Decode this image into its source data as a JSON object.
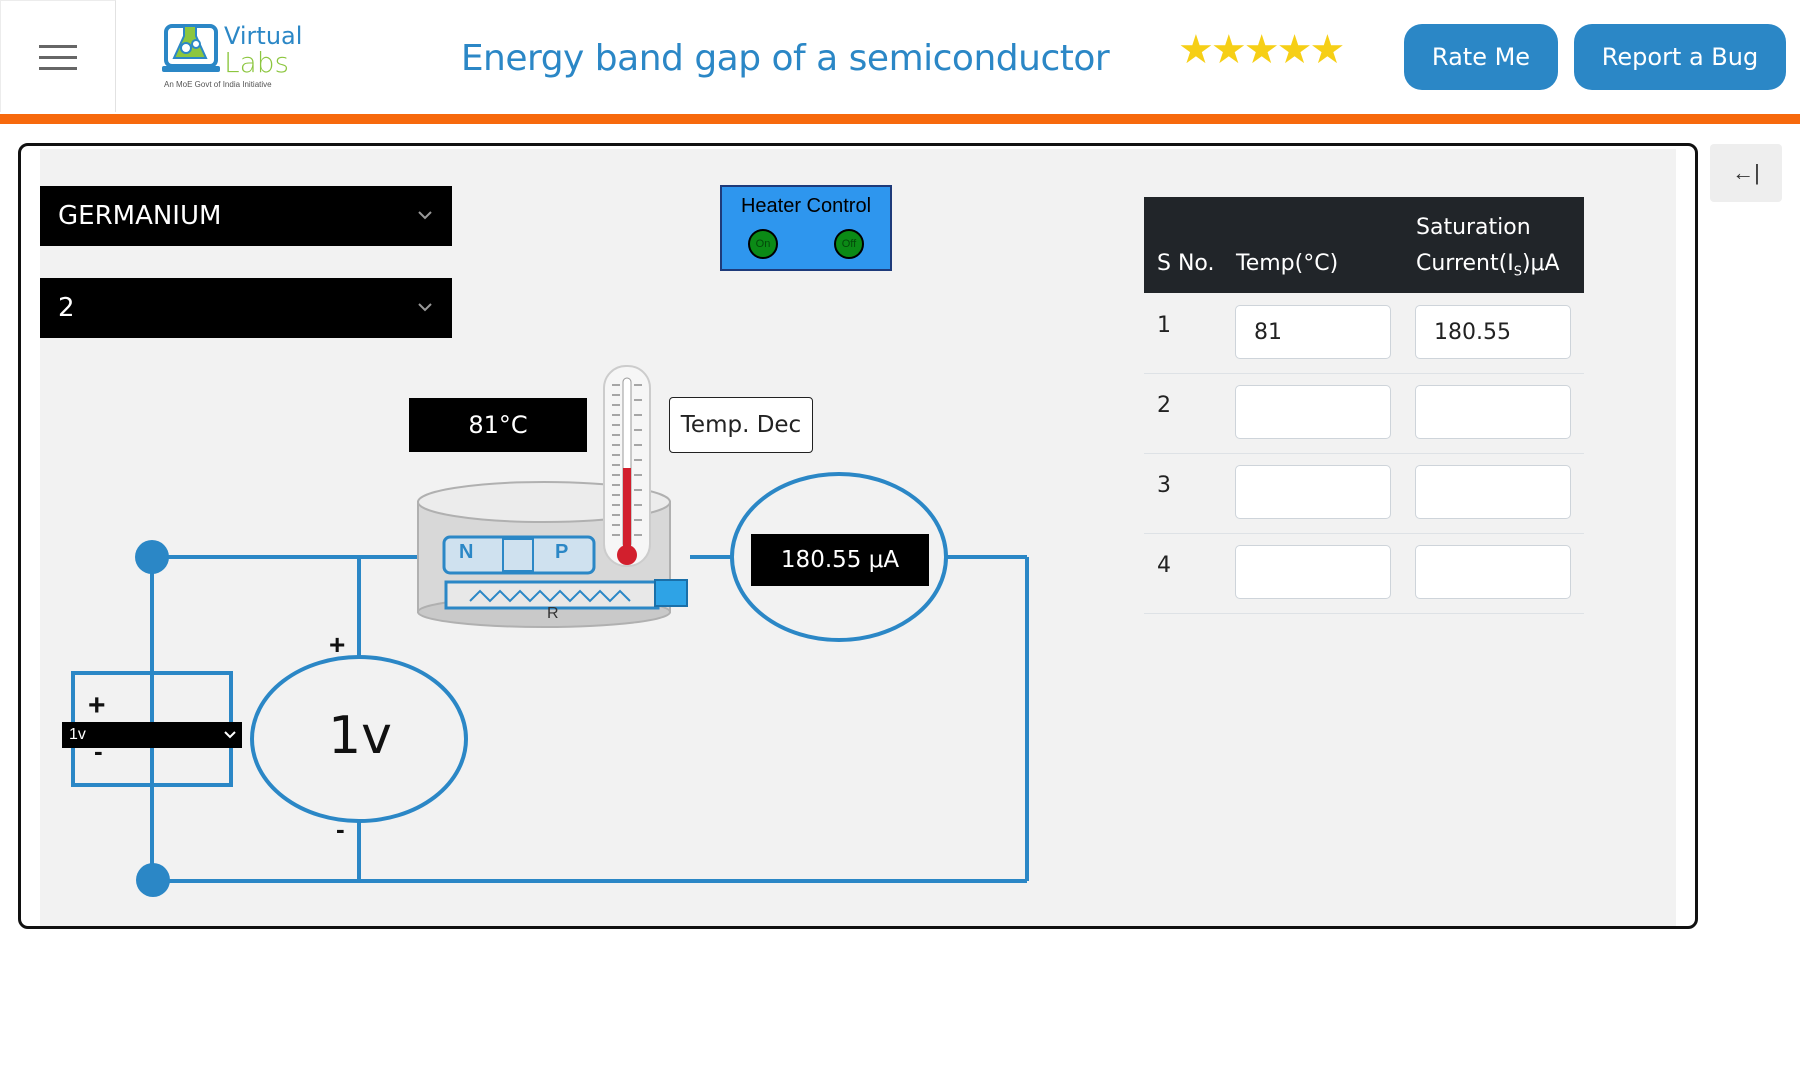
{
  "header": {
    "logo_title": "Virtual",
    "logo_sub": "Labs",
    "logo_tagline": "An MoE Govt of India Initiative",
    "title": "Energy band gap of a semiconductor",
    "stars": "★★★★★",
    "rate_label": "Rate Me",
    "bug_label": "Report a Bug",
    "accent_color": "#f7690d",
    "brand_color": "#2b87c6"
  },
  "controls": {
    "material": "GERMANIUM",
    "selection": "2",
    "heater_label": "Heater Control",
    "heater_on": "On",
    "heater_off": "Off",
    "temperature": "81°C",
    "temp_dec_label": "Temp. Dec",
    "current_reading": "180.55 μA",
    "voltage_select": "1v",
    "voltage_label": "1v",
    "plus": "+",
    "minus": "-",
    "diode_n": "N",
    "diode_p": "P",
    "resistor_label": "R",
    "collapse": "←|"
  },
  "table": {
    "headers": [
      "S No.",
      "Temp(°C)",
      "Saturation",
      "Current(I",
      "S",
      ")μA"
    ],
    "rows": [
      {
        "sno": "1",
        "temp": "81",
        "current": "180.55"
      },
      {
        "sno": "2",
        "temp": "",
        "current": ""
      },
      {
        "sno": "3",
        "temp": "",
        "current": ""
      },
      {
        "sno": "4",
        "temp": "",
        "current": ""
      }
    ]
  }
}
